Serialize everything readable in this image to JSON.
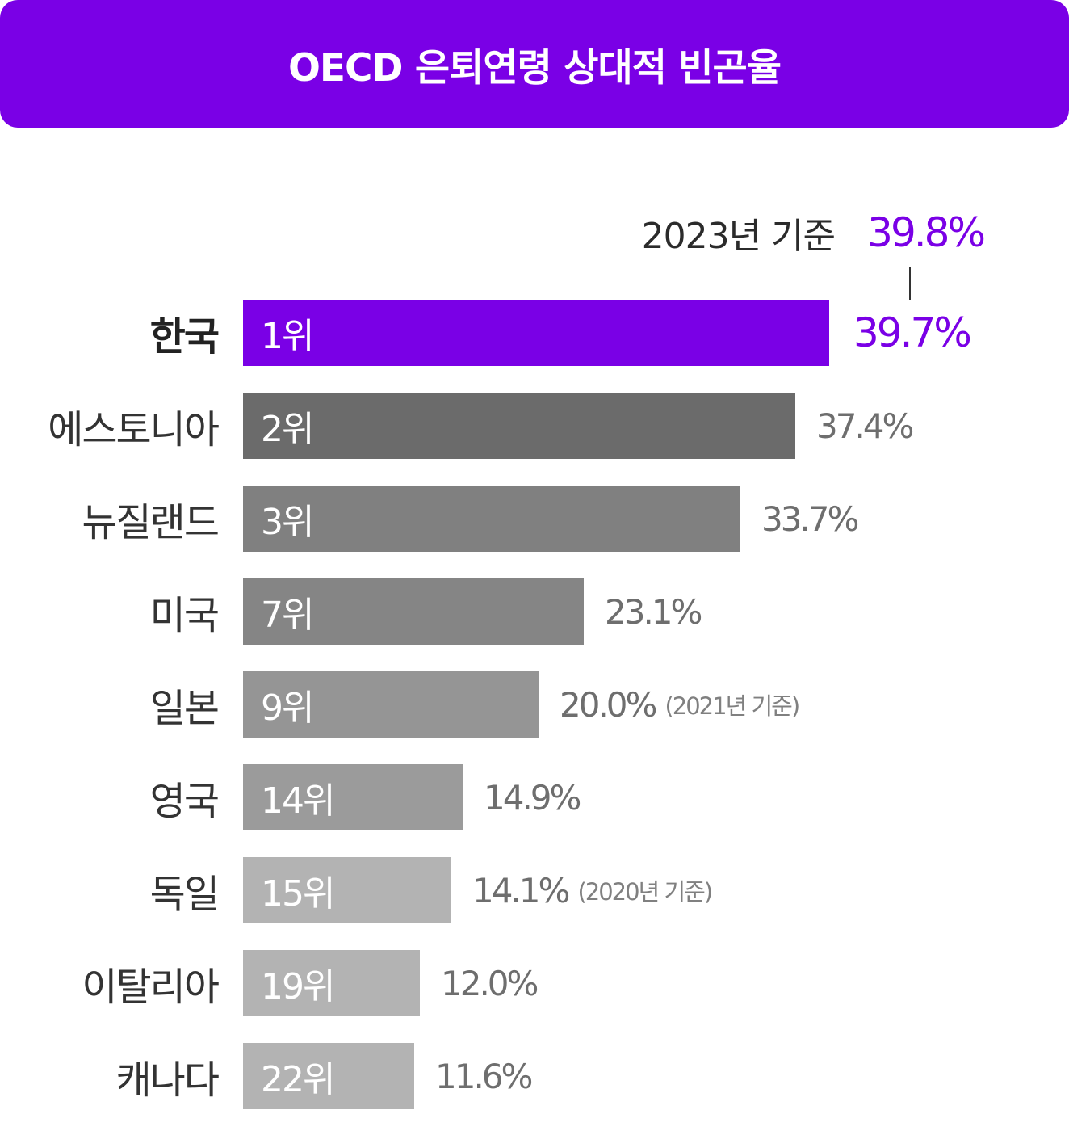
{
  "title": "OECD 은퇴연령 상대적 빈곤율",
  "colors": {
    "accent": "#7a00e6",
    "title_bg": "#7a00e6",
    "value_text": "#6e6e6e"
  },
  "reference_note": {
    "label": "2023년 기준",
    "value": "39.8%"
  },
  "chart_data": {
    "type": "bar",
    "orientation": "horizontal",
    "title": "OECD 은퇴연령 상대적 빈곤율",
    "xlim": [
      0,
      39.7
    ],
    "grid": false,
    "legend": "none",
    "categories": [
      "한국",
      "에스토니아",
      "뉴질랜드",
      "미국",
      "일본",
      "영국",
      "독일",
      "이탈리아",
      "캐나다"
    ],
    "values": [
      39.7,
      37.4,
      33.7,
      23.1,
      20.0,
      14.9,
      14.1,
      12.0,
      11.6
    ],
    "value_labels": [
      "39.7%",
      "37.4%",
      "33.7%",
      "23.1%",
      "20.0%",
      "14.9%",
      "14.1%",
      "12.0%",
      "11.6%"
    ],
    "ranks": [
      "1위",
      "2위",
      "3위",
      "7위",
      "9위",
      "14위",
      "15위",
      "19위",
      "22위"
    ],
    "footnotes": [
      "",
      "",
      "",
      "",
      "(2021년 기준)",
      "",
      "(2020년 기준)",
      "",
      ""
    ],
    "bar_colors": [
      "#7a00e6",
      "#6b6b6b",
      "#808080",
      "#858585",
      "#959595",
      "#9b9b9b",
      "#b3b3b3",
      "#b3b3b3",
      "#b3b3b3"
    ],
    "highlight_index": 0,
    "annotation": {
      "label": "2023년 기준",
      "value": "39.8%"
    }
  }
}
